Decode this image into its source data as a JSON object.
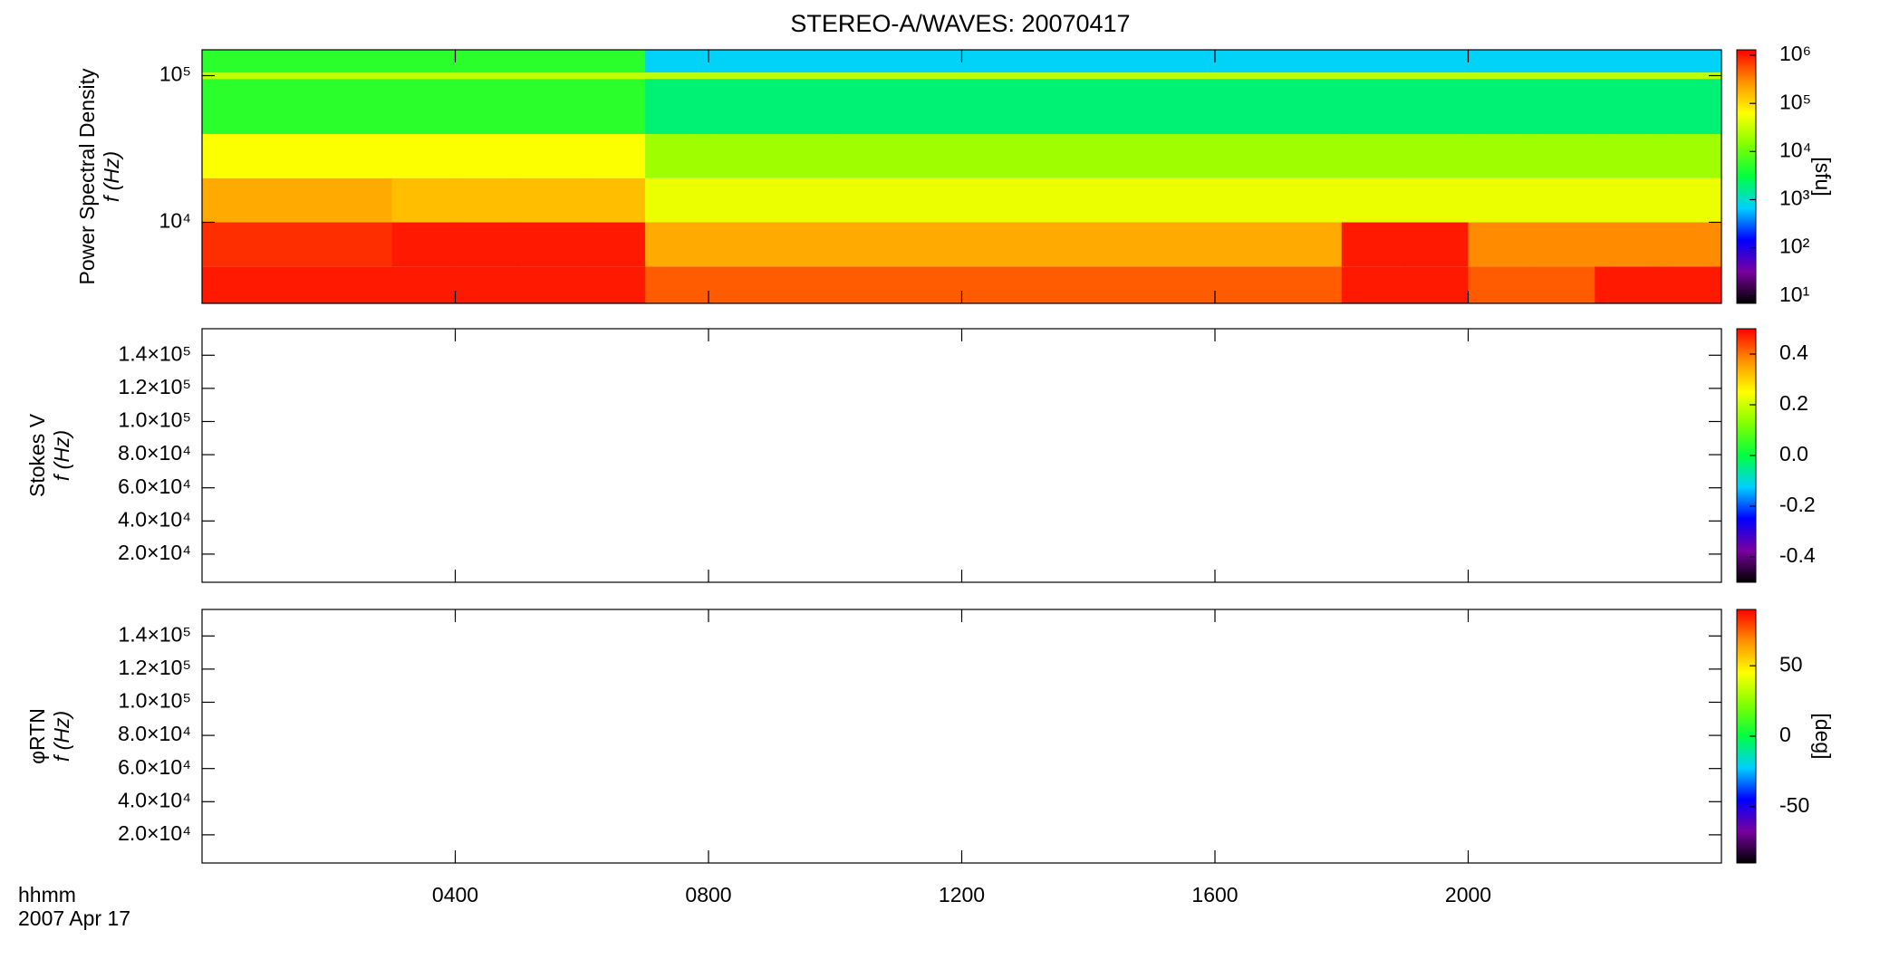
{
  "chart_data": [
    {
      "type": "heatmap",
      "title": "STEREO-A/WAVES: 20070417",
      "ylabel": [
        "Power Spectral Density",
        "f (Hz)"
      ],
      "ylog": true,
      "ylim": [
        2800,
        150000
      ],
      "yticks": [
        {
          "value": 10000,
          "label": "10⁴"
        },
        {
          "value": 100000,
          "label": "10⁵"
        }
      ],
      "x_edges": [
        0,
        1,
        2,
        3,
        4,
        5,
        6,
        7,
        8,
        9,
        10,
        11,
        12,
        13,
        14,
        15,
        16,
        17,
        18,
        19,
        20,
        21,
        22,
        23,
        24
      ],
      "y_edges": [
        2800,
        5000,
        10000,
        20000,
        40000,
        95000,
        105000,
        150000
      ],
      "z": [
        [
          1000000,
          1000000,
          1000000,
          1000000,
          1000000,
          1000000,
          1000000,
          500000,
          500000,
          500000,
          500000,
          500000,
          500000,
          500000,
          500000,
          500000,
          500000,
          500000,
          1000000,
          1000000,
          500000,
          500000,
          1000000,
          1000000
        ],
        [
          800000,
          800000,
          800000,
          1000000,
          1000000,
          1000000,
          1000000,
          200000,
          200000,
          200000,
          200000,
          200000,
          200000,
          200000,
          200000,
          200000,
          200000,
          200000,
          1000000,
          1000000,
          300000,
          300000,
          300000,
          300000
        ],
        [
          200000,
          200000,
          200000,
          150000,
          150000,
          150000,
          150000,
          50000,
          50000,
          50000,
          50000,
          50000,
          50000,
          50000,
          50000,
          50000,
          50000,
          50000,
          50000,
          50000,
          50000,
          50000,
          50000,
          50000
        ],
        [
          60000,
          60000,
          60000,
          60000,
          60000,
          60000,
          60000,
          20000,
          20000,
          20000,
          20000,
          20000,
          20000,
          20000,
          20000,
          20000,
          20000,
          20000,
          20000,
          20000,
          20000,
          20000,
          20000,
          20000
        ],
        [
          5000,
          5000,
          5000,
          5000,
          5000,
          5000,
          5000,
          2000,
          2000,
          2000,
          2000,
          2000,
          2000,
          2000,
          2000,
          2000,
          2000,
          2000,
          2000,
          2000,
          2000,
          2000,
          2000,
          2000
        ],
        [
          30000,
          30000,
          30000,
          30000,
          30000,
          30000,
          30000,
          30000,
          30000,
          30000,
          30000,
          30000,
          30000,
          30000,
          30000,
          30000,
          30000,
          30000,
          30000,
          30000,
          30000,
          30000,
          30000,
          30000
        ],
        [
          5000,
          5000,
          5000,
          5000,
          5000,
          5000,
          5000,
          700,
          700,
          700,
          700,
          700,
          700,
          700,
          700,
          700,
          700,
          700,
          700,
          700,
          700,
          700,
          700,
          700
        ]
      ],
      "clog": true,
      "clim": [
        7,
        1300000
      ],
      "cticks": [
        {
          "value": 10,
          "label": "10¹"
        },
        {
          "value": 100,
          "label": "10²"
        },
        {
          "value": 1000,
          "label": "10³"
        },
        {
          "value": 10000,
          "label": "10⁴"
        },
        {
          "value": 100000,
          "label": "10⁵"
        },
        {
          "value": 1000000,
          "label": "10⁶"
        }
      ],
      "clabel": "[sfu]",
      "colormap": [
        "#000000",
        "#7a00a0",
        "#0000ff",
        "#00d0ff",
        "#00ff40",
        "#80ff00",
        "#ffff00",
        "#ff9000",
        "#ff0000"
      ]
    },
    {
      "type": "heatmap",
      "ylabel": [
        "Stokes V",
        "f (Hz)"
      ],
      "ylim": [
        3000,
        156000
      ],
      "yticks": [
        {
          "value": 20000,
          "label": "2.0×10⁴"
        },
        {
          "value": 40000,
          "label": "4.0×10⁴"
        },
        {
          "value": 60000,
          "label": "6.0×10⁴"
        },
        {
          "value": 80000,
          "label": "8.0×10⁴"
        },
        {
          "value": 100000,
          "label": "1.0×10⁵"
        },
        {
          "value": 120000,
          "label": "1.2×10⁵"
        },
        {
          "value": 140000,
          "label": "1.4×10⁵"
        }
      ],
      "clim": [
        -0.5,
        0.5
      ],
      "cticks": [
        -0.4,
        -0.2,
        {
          "value": 0,
          "label": "0.0"
        },
        0.2,
        0.4
      ]
    },
    {
      "type": "heatmap",
      "ylabel": [
        "φRTN",
        "f (Hz)"
      ],
      "ylim": [
        3000,
        156000
      ],
      "yticks": [
        {
          "value": 20000,
          "label": "2.0×10⁴"
        },
        {
          "value": 40000,
          "label": "4.0×10⁴"
        },
        {
          "value": 60000,
          "label": "6.0×10⁴"
        },
        {
          "value": 80000,
          "label": "8.0×10⁴"
        },
        {
          "value": 100000,
          "label": "1.0×10⁵"
        },
        {
          "value": 120000,
          "label": "1.2×10⁵"
        },
        {
          "value": 140000,
          "label": "1.4×10⁵"
        }
      ],
      "clim": [
        -90,
        90
      ],
      "cticks": [
        -50,
        0,
        50
      ],
      "clabel": "[deg]",
      "xlim": [
        0,
        24
      ],
      "xticks": [
        {
          "value": 4,
          "label": "0400"
        },
        {
          "value": 8,
          "label": "0800"
        },
        {
          "value": 12,
          "label": "1200"
        },
        {
          "value": 16,
          "label": "1600"
        },
        {
          "value": 20,
          "label": "2000"
        }
      ],
      "xlabel": [
        "hhmm",
        "2007 Apr 17"
      ]
    }
  ]
}
